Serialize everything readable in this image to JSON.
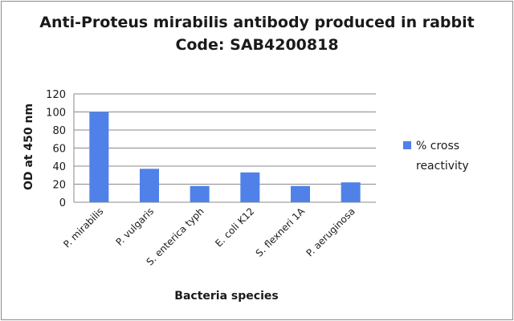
{
  "chart_data": {
    "type": "bar",
    "title": "Anti-Proteus mirabilis antibody produced in rabbit",
    "subtitle": "Code: SAB4200818",
    "xlabel": "Bacteria species",
    "ylabel": "OD at 450 nm",
    "categories": [
      "P. mirabilis",
      "P. vulgaris",
      "S. enterica typh",
      "E. coli K12",
      "S. flexneri 1A",
      "P. aeruginosa"
    ],
    "series": [
      {
        "name": "% cross reactivity",
        "name_lines": [
          "% cross",
          "reactivity"
        ],
        "values": [
          100,
          37,
          18,
          33,
          18,
          22
        ],
        "color": "#4f81e8"
      }
    ],
    "ylim": [
      0,
      120
    ],
    "yticks": [
      0,
      20,
      40,
      60,
      80,
      100,
      120
    ],
    "grid": true,
    "legend": "right"
  }
}
